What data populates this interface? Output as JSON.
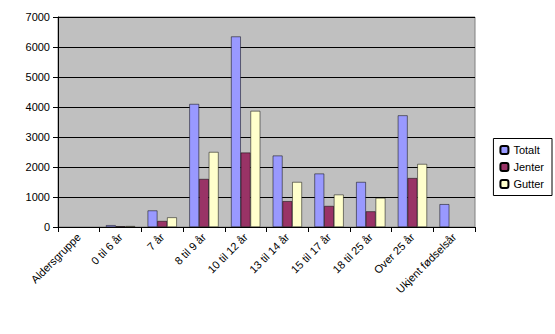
{
  "chart_data": {
    "type": "bar",
    "categories": [
      "Aldersgruppe",
      "0 til 6 år",
      "7 år",
      "8 til 9 år",
      "10 til 12 år",
      "13 til 14 år",
      "15 til 17 år",
      "18 til 25 år",
      "Over 25 år",
      "Ukjent fødselsår"
    ],
    "series": [
      {
        "name": "Totalt",
        "color": "#9999ff",
        "values": [
          null,
          60,
          550,
          4100,
          6350,
          2380,
          1780,
          1500,
          3720,
          760
        ]
      },
      {
        "name": "Jenter",
        "color": "#993366",
        "values": [
          null,
          25,
          200,
          1600,
          2480,
          860,
          700,
          520,
          1630,
          null
        ]
      },
      {
        "name": "Gutter",
        "color": "#ffffcc",
        "values": [
          null,
          30,
          320,
          2500,
          3870,
          1500,
          1080,
          970,
          2100,
          null
        ]
      }
    ],
    "ylim": [
      0,
      7000
    ],
    "yticks": [
      0,
      1000,
      2000,
      3000,
      4000,
      5000,
      6000,
      7000
    ],
    "grid": true,
    "legend": "right"
  }
}
